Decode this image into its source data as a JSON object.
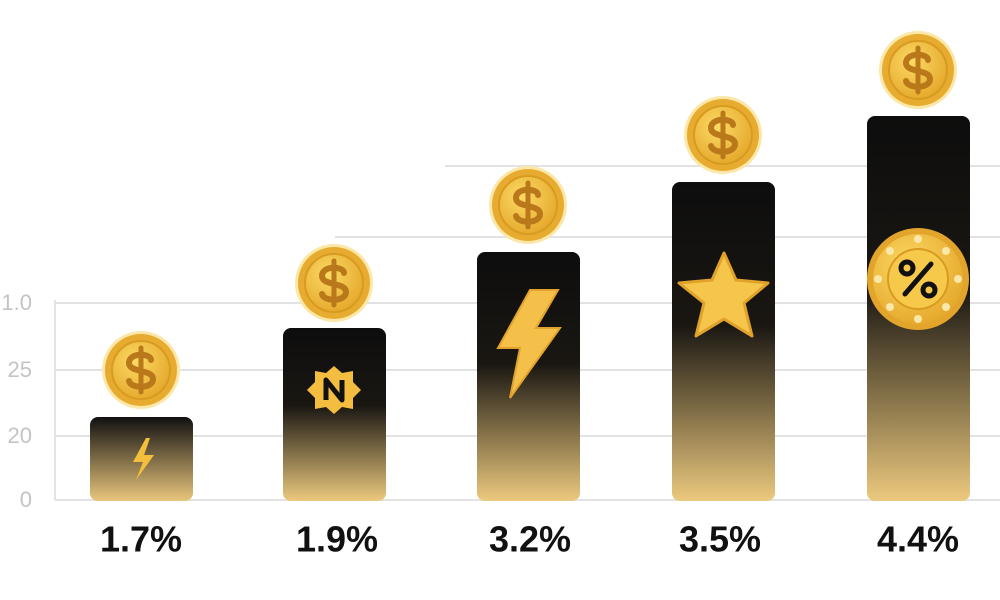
{
  "axis_labels": [
    "1.0",
    "25",
    "20",
    "0"
  ],
  "bars": [
    {
      "label": "1.7%"
    },
    {
      "label": "1.9%"
    },
    {
      "label": "3.2%"
    },
    {
      "label": "3.5%"
    },
    {
      "label": "4.4%"
    }
  ]
}
